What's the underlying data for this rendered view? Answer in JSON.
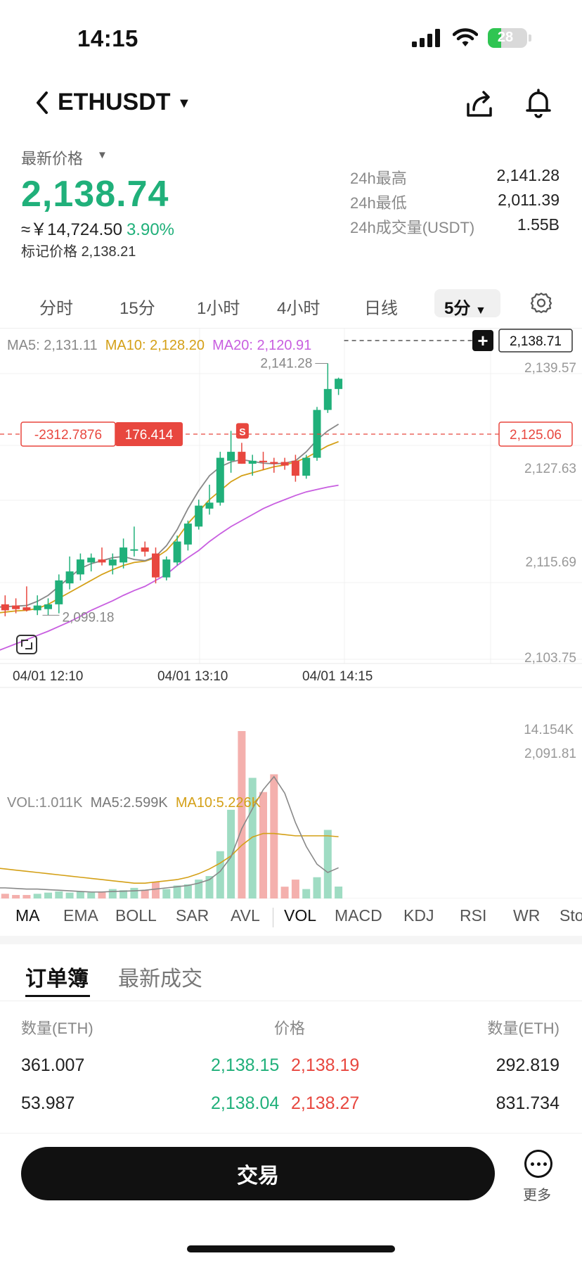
{
  "status_bar": {
    "time": "14:15",
    "battery": "28"
  },
  "header": {
    "symbol": "ETHUSDT",
    "back_icon": "chevron-left-icon",
    "share_icon": "share-icon",
    "bell_icon": "bell-icon"
  },
  "ticker": {
    "latest_label": "最新价格",
    "last_price": "2,138.74",
    "cny_value": "≈￥14,724.50",
    "change_pct": "3.90%",
    "mark_label": "标记价格",
    "mark_price": "2,138.21",
    "stats": [
      {
        "label": "24h最高",
        "value": "2,141.28"
      },
      {
        "label": "24h最低",
        "value": "2,011.39"
      },
      {
        "label": "24h成交量(USDT)",
        "value": "1.55B"
      }
    ],
    "up_color": "#20b07a",
    "down_color": "#e8473f"
  },
  "interval_tabs": [
    "分时",
    "15分",
    "1小时",
    "4小时",
    "日线"
  ],
  "interval_active": "5分",
  "main_legend": {
    "ma5": "MA5: 2,131.11",
    "ma10": "MA10: 2,128.20",
    "ma20": "MA20: 2,120.91"
  },
  "price_axis": [
    "2,139.57",
    "2,127.63",
    "2,115.69",
    "2,103.75",
    "2,091.81"
  ],
  "time_axis": [
    "04/01 12:10",
    "04/01 13:10",
    "04/01 14:15"
  ],
  "annotations": {
    "high_label": "2,141.28",
    "low_label": "2,099.18",
    "current_price_tag": "2,138.71",
    "position_pnl": "-2312.7876",
    "position_qty": "176.414",
    "position_price": "2,125.06",
    "sell_marker": "S"
  },
  "vol_legend": {
    "vol": "VOL:1.011K",
    "ma5": "MA5:2.599K",
    "ma10": "MA10:5.226K",
    "max": "14.154K"
  },
  "indicator_tabs": [
    "MA",
    "EMA",
    "BOLL",
    "SAR",
    "AVL",
    "VOL",
    "MACD",
    "KDJ",
    "RSI",
    "WR",
    "Sto"
  ],
  "order_book": {
    "tabs": [
      "订单簿",
      "最新成交"
    ],
    "headers": [
      "数量(ETH)",
      "价格",
      "数量(ETH)"
    ],
    "rows": [
      {
        "bid_qty": "361.007",
        "bid_price": "2,138.15",
        "ask_price": "2,138.19",
        "ask_qty": "292.819"
      },
      {
        "bid_qty": "53.987",
        "bid_price": "2,138.04",
        "ask_price": "2,138.27",
        "ask_qty": "831.734"
      }
    ]
  },
  "footer": {
    "trade_label": "交易",
    "more_label": "更多"
  },
  "chart_data": {
    "type": "candlestick",
    "interval": "5分",
    "ylim": [
      2091.81,
      2139.57
    ],
    "candles": [
      {
        "o": 2100.5,
        "h": 2103.0,
        "l": 2098.5,
        "c": 2102.0
      },
      {
        "o": 2101.0,
        "h": 2102.5,
        "l": 2099.0,
        "c": 2100.0
      },
      {
        "o": 2100.8,
        "h": 2102.0,
        "l": 2099.5,
        "c": 2100.2
      },
      {
        "o": 2100.5,
        "h": 2104.0,
        "l": 2099.8,
        "c": 2100.0
      },
      {
        "o": 2100.0,
        "h": 2102.5,
        "l": 2099.2,
        "c": 2100.8
      },
      {
        "o": 2100.2,
        "h": 2102.0,
        "l": 2099.18,
        "c": 2101.0
      },
      {
        "o": 2101.0,
        "h": 2106.0,
        "l": 2099.5,
        "c": 2105.0
      },
      {
        "o": 2104.5,
        "h": 2109.0,
        "l": 2103.5,
        "c": 2106.5
      },
      {
        "o": 2106.0,
        "h": 2109.5,
        "l": 2105.0,
        "c": 2108.5
      },
      {
        "o": 2108.0,
        "h": 2109.5,
        "l": 2106.5,
        "c": 2108.8
      },
      {
        "o": 2108.5,
        "h": 2110.5,
        "l": 2107.5,
        "c": 2108.0
      },
      {
        "o": 2107.5,
        "h": 2109.5,
        "l": 2106.0,
        "c": 2108.5
      },
      {
        "o": 2108.0,
        "h": 2112.0,
        "l": 2107.0,
        "c": 2110.5
      },
      {
        "o": 2110.0,
        "h": 2114.0,
        "l": 2109.0,
        "c": 2110.2
      },
      {
        "o": 2110.5,
        "h": 2111.5,
        "l": 2109.0,
        "c": 2109.8
      },
      {
        "o": 2109.5,
        "h": 2110.5,
        "l": 2104.5,
        "c": 2105.5
      },
      {
        "o": 2105.5,
        "h": 2109.0,
        "l": 2105.0,
        "c": 2108.5
      },
      {
        "o": 2108.0,
        "h": 2112.5,
        "l": 2107.5,
        "c": 2111.5
      },
      {
        "o": 2111.0,
        "h": 2115.0,
        "l": 2110.0,
        "c": 2114.5
      },
      {
        "o": 2114.0,
        "h": 2118.5,
        "l": 2113.5,
        "c": 2117.5
      },
      {
        "o": 2117.0,
        "h": 2121.0,
        "l": 2116.0,
        "c": 2118.0
      },
      {
        "o": 2118.0,
        "h": 2126.5,
        "l": 2117.5,
        "c": 2125.5
      },
      {
        "o": 2125.0,
        "h": 2130.0,
        "l": 2123.0,
        "c": 2126.5
      },
      {
        "o": 2126.5,
        "h": 2128.0,
        "l": 2124.5,
        "c": 2124.5
      },
      {
        "o": 2124.5,
        "h": 2126.0,
        "l": 2122.5,
        "c": 2125.0
      },
      {
        "o": 2125.0,
        "h": 2126.5,
        "l": 2123.5,
        "c": 2124.8
      },
      {
        "o": 2124.8,
        "h": 2125.5,
        "l": 2123.0,
        "c": 2124.5
      },
      {
        "o": 2124.8,
        "h": 2125.5,
        "l": 2123.5,
        "c": 2124.2
      },
      {
        "o": 2125.0,
        "h": 2126.0,
        "l": 2121.5,
        "c": 2122.5
      },
      {
        "o": 2122.5,
        "h": 2126.0,
        "l": 2122.0,
        "c": 2125.5
      },
      {
        "o": 2125.5,
        "h": 2134.0,
        "l": 2125.0,
        "c": 2133.5
      },
      {
        "o": 2133.5,
        "h": 2141.28,
        "l": 2133.0,
        "c": 2137.0
      },
      {
        "o": 2137.0,
        "h": 2138.9,
        "l": 2136.0,
        "c": 2138.71
      }
    ],
    "ma5": [
      2100.5,
      2100.6,
      2100.7,
      2100.8,
      2101.5,
      2102.5,
      2104.0,
      2105.5,
      2107.0,
      2107.8,
      2108.3,
      2108.8,
      2109.0,
      2108.5,
      2108.3,
      2109.0,
      2110.8,
      2113.5,
      2117.0,
      2120.0,
      2122.5,
      2124.0,
      2124.8,
      2125.2,
      2124.9,
      2124.6,
      2124.5,
      2124.6,
      2125.0,
      2126.5,
      2128.5,
      2130.0,
      2131.11
    ],
    "ma10": [
      2099.5,
      2099.7,
      2099.9,
      2100.0,
      2100.3,
      2101.0,
      2102.0,
      2103.0,
      2104.0,
      2105.0,
      2106.0,
      2106.8,
      2107.5,
      2108.0,
      2108.2,
      2108.8,
      2110.0,
      2112.0,
      2114.5,
      2116.5,
      2118.5,
      2120.0,
      2121.5,
      2122.5,
      2123.0,
      2123.5,
      2124.0,
      2124.3,
      2124.8,
      2125.5,
      2126.5,
      2127.5,
      2128.2
    ],
    "ma20": [
      2093.0,
      2093.7,
      2094.4,
      2095.1,
      2095.8,
      2096.5,
      2097.3,
      2098.1,
      2099.0,
      2100.0,
      2100.8,
      2101.6,
      2102.5,
      2103.3,
      2104.0,
      2105.0,
      2106.0,
      2107.5,
      2108.8,
      2110.0,
      2111.5,
      2112.8,
      2114.0,
      2115.0,
      2116.0,
      2117.0,
      2117.8,
      2118.5,
      2119.2,
      2119.8,
      2120.2,
      2120.6,
      2120.91
    ],
    "volume": [
      0.3,
      0.4,
      0.3,
      0.3,
      0.4,
      0.5,
      0.6,
      0.5,
      0.6,
      0.5,
      0.6,
      0.8,
      0.7,
      0.9,
      0.7,
      1.4,
      0.8,
      1.1,
      1.2,
      1.6,
      1.9,
      4.0,
      7.5,
      14.154,
      10.2,
      9.0,
      10.5,
      1.0,
      1.6,
      0.8,
      1.8,
      5.8,
      1.011
    ],
    "vol_ma5": [
      0.9,
      0.9,
      0.85,
      0.8,
      0.8,
      0.75,
      0.7,
      0.65,
      0.6,
      0.55,
      0.55,
      0.6,
      0.62,
      0.65,
      0.7,
      0.8,
      0.9,
      1.0,
      1.1,
      1.3,
      1.6,
      2.3,
      3.5,
      5.9,
      7.6,
      9.2,
      10.3,
      8.9,
      6.4,
      4.4,
      2.9,
      2.2,
      2.599
    ],
    "vol_ma10": [
      2.6,
      2.5,
      2.4,
      2.3,
      2.2,
      2.1,
      2.0,
      1.9,
      1.8,
      1.7,
      1.6,
      1.5,
      1.4,
      1.3,
      1.3,
      1.4,
      1.5,
      1.6,
      1.8,
      2.1,
      2.5,
      3.0,
      3.6,
      4.5,
      5.2,
      5.5,
      5.5,
      5.4,
      5.3,
      5.3,
      5.3,
      5.3,
      5.226
    ]
  }
}
